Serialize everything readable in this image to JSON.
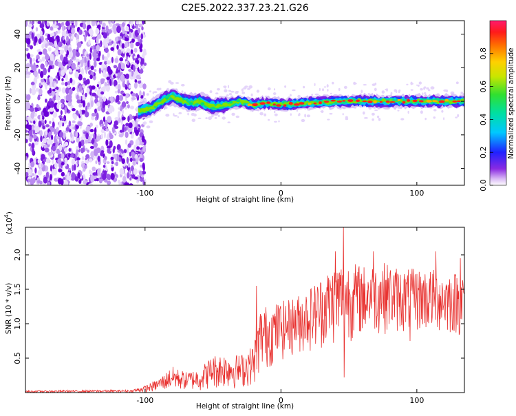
{
  "title": "C2E5.2022.337.23.21.G26",
  "chart_data": [
    {
      "type": "heatmap",
      "xlabel": "Height of straight line (km)",
      "ylabel": "Frequency (Hz)",
      "xlim": [
        -188,
        135
      ],
      "ylim": [
        -50,
        48
      ],
      "xticks": [
        -100,
        0,
        100
      ],
      "yticks": [
        -40,
        -20,
        0,
        20,
        40
      ],
      "noise_region_x": [
        -188,
        -102
      ],
      "signal_start_x": -105,
      "ridge": [
        {
          "x": -105,
          "y": -6
        },
        {
          "x": -95,
          "y": -4
        },
        {
          "x": -88,
          "y": 0
        },
        {
          "x": -80,
          "y": 3
        },
        {
          "x": -75,
          "y": 1
        },
        {
          "x": -68,
          "y": -1
        },
        {
          "x": -60,
          "y": 0
        },
        {
          "x": -50,
          "y": -3
        },
        {
          "x": -40,
          "y": -2
        },
        {
          "x": -30,
          "y": 0
        },
        {
          "x": -20,
          "y": -2
        },
        {
          "x": -10,
          "y": -1
        },
        {
          "x": 0,
          "y": -2
        },
        {
          "x": 20,
          "y": -1
        },
        {
          "x": 40,
          "y": 0
        },
        {
          "x": 60,
          "y": 0
        },
        {
          "x": 80,
          "y": 0
        },
        {
          "x": 100,
          "y": 0
        },
        {
          "x": 135,
          "y": 0
        }
      ],
      "colorbar": {
        "label": "Normalized spectral amplitude",
        "range": [
          0,
          1
        ],
        "ticks": [
          0.0,
          0.2,
          0.4,
          0.6,
          0.8
        ],
        "colormap": "rainbow (white → violet → blue → cyan → green → yellow → orange → red → magenta)"
      }
    },
    {
      "type": "line",
      "xlabel": "Height of straight line (km)",
      "ylabel": "SNR (10 * v/v)",
      "multiplier": "(x10",
      "exponent": "4",
      "multiplier_close": ")",
      "xlim": [
        -188,
        135
      ],
      "ylim": [
        0,
        2.4
      ],
      "xticks": [
        -100,
        0,
        100
      ],
      "yticks": [
        0.5,
        1.0,
        1.5,
        2.0
      ],
      "color": "#e8302e",
      "envelope": [
        {
          "x": -188,
          "lo": 0.0,
          "hi": 0.03
        },
        {
          "x": -110,
          "lo": 0.0,
          "hi": 0.04
        },
        {
          "x": -100,
          "lo": 0.0,
          "hi": 0.1
        },
        {
          "x": -90,
          "lo": 0.02,
          "hi": 0.2
        },
        {
          "x": -80,
          "lo": 0.03,
          "hi": 0.38
        },
        {
          "x": -70,
          "lo": 0.03,
          "hi": 0.3
        },
        {
          "x": -60,
          "lo": 0.02,
          "hi": 0.35
        },
        {
          "x": -50,
          "lo": 0.05,
          "hi": 0.55
        },
        {
          "x": -40,
          "lo": 0.05,
          "hi": 0.58
        },
        {
          "x": -30,
          "lo": 0.05,
          "hi": 0.55
        },
        {
          "x": -20,
          "lo": 0.1,
          "hi": 0.7
        },
        {
          "x": -15,
          "lo": 0.25,
          "hi": 1.25
        },
        {
          "x": -5,
          "lo": 0.4,
          "hi": 1.3
        },
        {
          "x": 5,
          "lo": 0.5,
          "hi": 1.35
        },
        {
          "x": 15,
          "lo": 0.55,
          "hi": 1.45
        },
        {
          "x": 25,
          "lo": 0.6,
          "hi": 1.6
        },
        {
          "x": 35,
          "lo": 0.65,
          "hi": 1.8
        },
        {
          "x": 45,
          "lo": 0.7,
          "hi": 1.95
        },
        {
          "x": 60,
          "lo": 0.8,
          "hi": 1.85
        },
        {
          "x": 75,
          "lo": 0.85,
          "hi": 1.9
        },
        {
          "x": 90,
          "lo": 0.85,
          "hi": 1.8
        },
        {
          "x": 110,
          "lo": 0.85,
          "hi": 1.8
        },
        {
          "x": 135,
          "lo": 0.8,
          "hi": 1.75
        }
      ],
      "spikes": [
        {
          "x": 46,
          "y": 2.42
        },
        {
          "x": 46.5,
          "y": 0.22
        },
        {
          "x": 40,
          "y": 2.05
        },
        {
          "x": 68,
          "y": 2.05
        },
        {
          "x": 114,
          "y": 2.05
        },
        {
          "x": -18,
          "y": 1.55
        },
        {
          "x": -24,
          "y": 0.55
        },
        {
          "x": 95,
          "y": 0.75
        },
        {
          "x": 132,
          "y": 1.95
        }
      ]
    }
  ]
}
